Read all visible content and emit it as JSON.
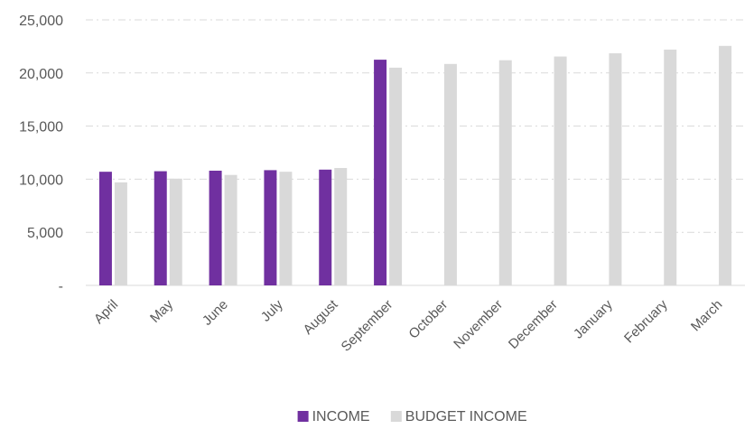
{
  "chart_data": {
    "type": "bar",
    "title": "",
    "xlabel": "",
    "ylabel": "",
    "categories": [
      "April",
      "May",
      "June",
      "July",
      "August",
      "September",
      "October",
      "November",
      "December",
      "January",
      "February",
      "March"
    ],
    "series": [
      {
        "name": "INCOME",
        "color": "#7030a0",
        "values": [
          10700,
          10750,
          10800,
          10850,
          10900,
          21250,
          null,
          null,
          null,
          null,
          null,
          null
        ]
      },
      {
        "name": "BUDGET INCOME",
        "color": "#d9d9d9",
        "values": [
          9700,
          10050,
          10400,
          10700,
          11050,
          20500,
          20850,
          21200,
          21550,
          21850,
          22200,
          22550
        ]
      }
    ],
    "ylim": [
      0,
      25000
    ],
    "yticks": [
      0,
      5000,
      10000,
      15000,
      20000,
      25000
    ],
    "ytick_labels": [
      "-",
      "5,000",
      "10,000",
      "15,000",
      "20,000",
      "25,000"
    ],
    "grid": true,
    "legend": "bottom"
  }
}
